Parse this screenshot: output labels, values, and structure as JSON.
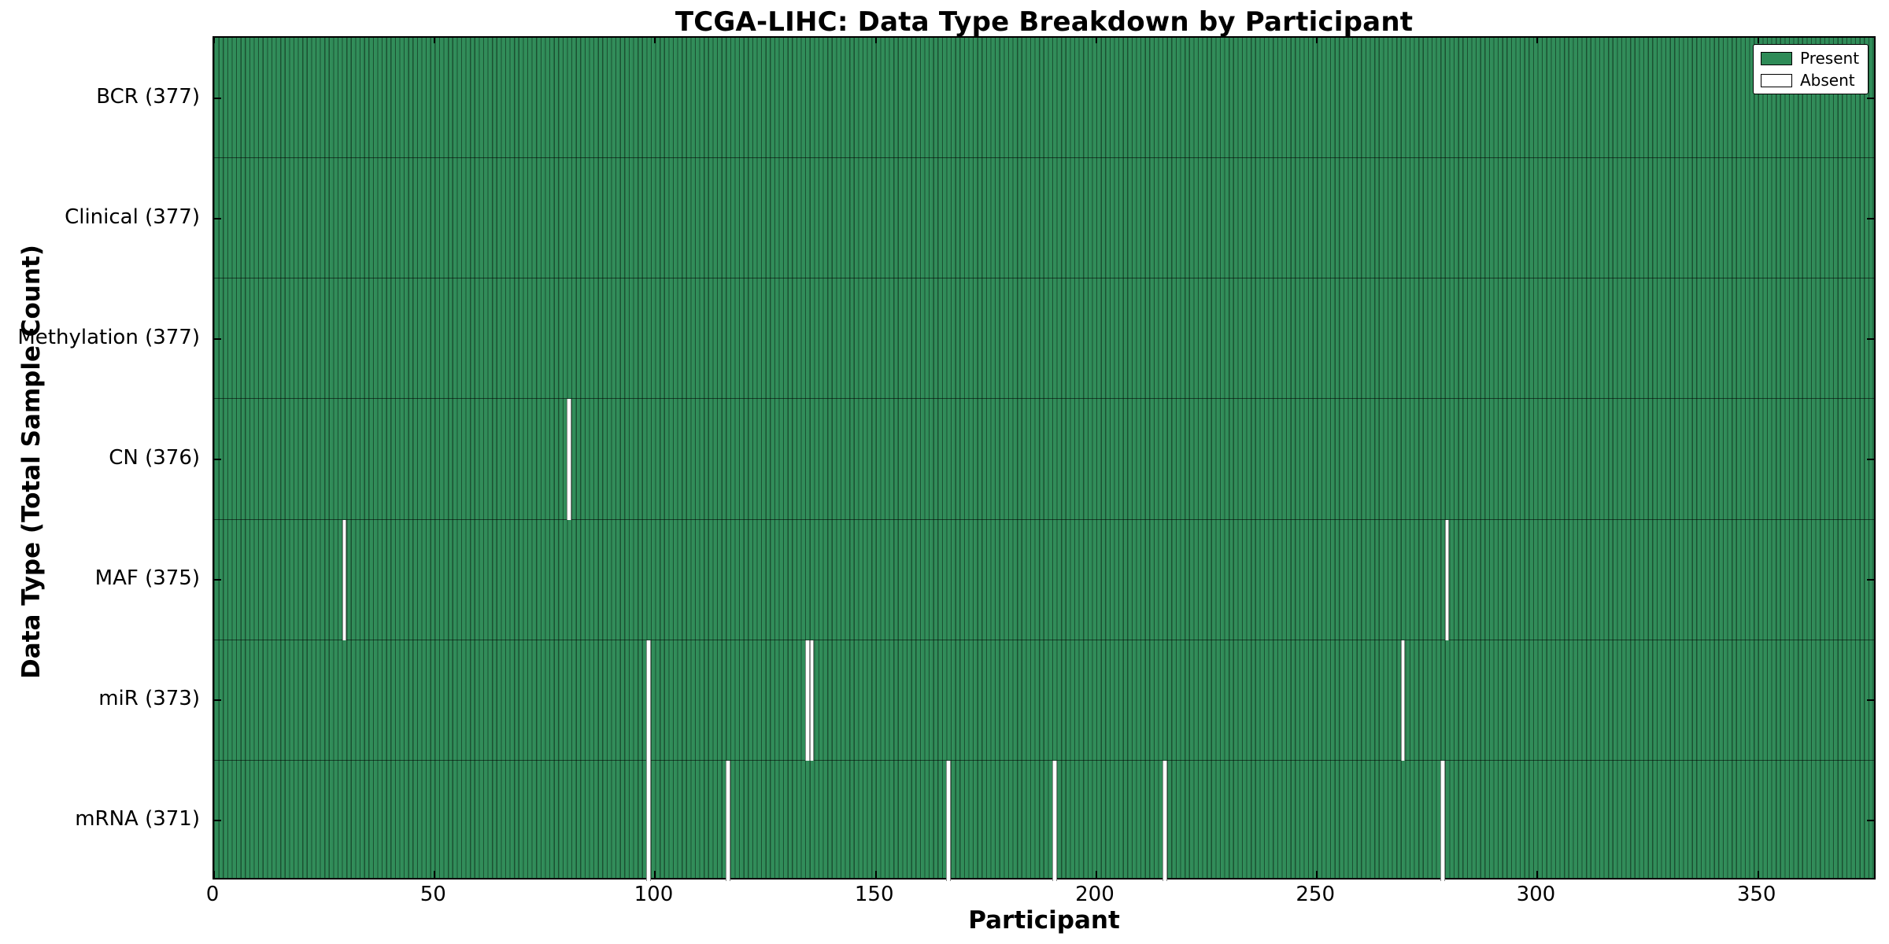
{
  "figure": {
    "title": "TCGA-LIHC: Data Type Breakdown by Participant",
    "xlabel": "Participant",
    "ylabel": "Data Type (Total Sample Count)"
  },
  "legend": {
    "position": "upper right",
    "items": [
      {
        "label": "Present",
        "color": "#2E8B57"
      },
      {
        "label": "Absent",
        "color": "#FFFFFF"
      }
    ]
  },
  "chart_data": {
    "type": "heatmap",
    "title": "TCGA-LIHC: Data Type Breakdown by Participant",
    "xlabel": "Participant",
    "ylabel": "Data Type (Total Sample Count)",
    "n_participants": 377,
    "x_ticks": [
      0,
      50,
      100,
      150,
      200,
      250,
      300,
      350
    ],
    "xlim": [
      0,
      377
    ],
    "present_color": "#2E8B57",
    "absent_color": "#FFFFFF",
    "grid": false,
    "legend_position": "upper right",
    "rows": [
      {
        "name": "BCR",
        "label": "BCR (377)",
        "total": 377,
        "absent_participants": []
      },
      {
        "name": "Clinical",
        "label": "Clinical (377)",
        "total": 377,
        "absent_participants": []
      },
      {
        "name": "Methylation",
        "label": "Methylation (377)",
        "total": 377,
        "absent_participants": []
      },
      {
        "name": "CN",
        "label": "CN (376)",
        "total": 376,
        "absent_participants": [
          80
        ]
      },
      {
        "name": "MAF",
        "label": "MAF (375)",
        "total": 375,
        "absent_participants": [
          29,
          279
        ]
      },
      {
        "name": "miR",
        "label": "miR (373)",
        "total": 373,
        "absent_participants": [
          98,
          134,
          135,
          269
        ]
      },
      {
        "name": "mRNA",
        "label": "mRNA (371)",
        "total": 371,
        "absent_participants": [
          98,
          116,
          166,
          190,
          215,
          278
        ]
      }
    ]
  }
}
